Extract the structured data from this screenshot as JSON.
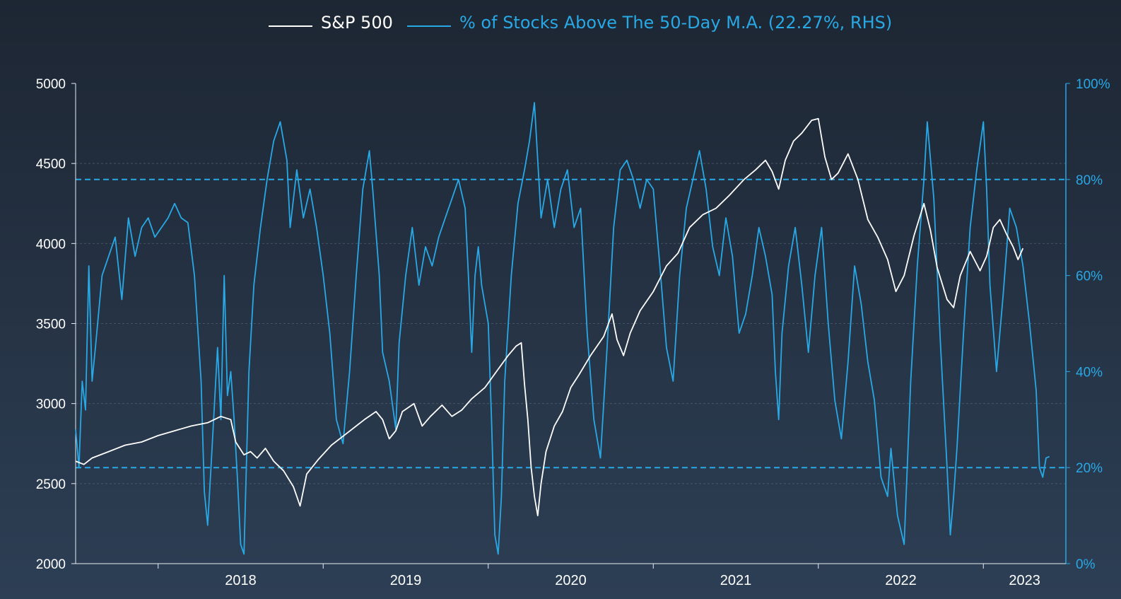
{
  "chart_data": {
    "type": "line",
    "legend_position": "top-center",
    "grid": true,
    "colors": {
      "sp500": "#ffffff",
      "pct": "#29a8e6",
      "axis": "#e8edf3",
      "grid": "#5d6b7c"
    },
    "series": [
      {
        "name": "S&P 500",
        "axis": "left",
        "points": [
          [
            2017.5,
            2640
          ],
          [
            2017.55,
            2620
          ],
          [
            2017.6,
            2660
          ],
          [
            2017.7,
            2700
          ],
          [
            2017.8,
            2740
          ],
          [
            2017.9,
            2760
          ],
          [
            2018.0,
            2800
          ],
          [
            2018.1,
            2830
          ],
          [
            2018.2,
            2860
          ],
          [
            2018.3,
            2880
          ],
          [
            2018.38,
            2920
          ],
          [
            2018.44,
            2900
          ],
          [
            2018.47,
            2760
          ],
          [
            2018.52,
            2680
          ],
          [
            2018.56,
            2700
          ],
          [
            2018.6,
            2660
          ],
          [
            2018.65,
            2720
          ],
          [
            2018.7,
            2640
          ],
          [
            2018.76,
            2580
          ],
          [
            2018.82,
            2480
          ],
          [
            2018.86,
            2360
          ],
          [
            2018.9,
            2560
          ],
          [
            2018.97,
            2650
          ],
          [
            2019.05,
            2740
          ],
          [
            2019.15,
            2820
          ],
          [
            2019.25,
            2900
          ],
          [
            2019.32,
            2950
          ],
          [
            2019.36,
            2900
          ],
          [
            2019.4,
            2780
          ],
          [
            2019.44,
            2830
          ],
          [
            2019.48,
            2950
          ],
          [
            2019.55,
            3000
          ],
          [
            2019.6,
            2860
          ],
          [
            2019.65,
            2920
          ],
          [
            2019.72,
            2990
          ],
          [
            2019.78,
            2920
          ],
          [
            2019.84,
            2960
          ],
          [
            2019.9,
            3030
          ],
          [
            2019.98,
            3100
          ],
          [
            2020.05,
            3200
          ],
          [
            2020.12,
            3300
          ],
          [
            2020.17,
            3360
          ],
          [
            2020.2,
            3380
          ],
          [
            2020.22,
            3120
          ],
          [
            2020.24,
            2900
          ],
          [
            2020.26,
            2600
          ],
          [
            2020.28,
            2420
          ],
          [
            2020.3,
            2300
          ],
          [
            2020.32,
            2500
          ],
          [
            2020.35,
            2700
          ],
          [
            2020.4,
            2860
          ],
          [
            2020.45,
            2950
          ],
          [
            2020.5,
            3100
          ],
          [
            2020.55,
            3180
          ],
          [
            2020.62,
            3300
          ],
          [
            2020.7,
            3420
          ],
          [
            2020.75,
            3560
          ],
          [
            2020.78,
            3400
          ],
          [
            2020.82,
            3300
          ],
          [
            2020.86,
            3440
          ],
          [
            2020.92,
            3580
          ],
          [
            2021.0,
            3700
          ],
          [
            2021.08,
            3860
          ],
          [
            2021.15,
            3940
          ],
          [
            2021.22,
            4100
          ],
          [
            2021.3,
            4180
          ],
          [
            2021.38,
            4220
          ],
          [
            2021.46,
            4300
          ],
          [
            2021.55,
            4400
          ],
          [
            2021.62,
            4460
          ],
          [
            2021.68,
            4520
          ],
          [
            2021.72,
            4450
          ],
          [
            2021.76,
            4340
          ],
          [
            2021.8,
            4520
          ],
          [
            2021.85,
            4640
          ],
          [
            2021.9,
            4690
          ],
          [
            2021.96,
            4770
          ],
          [
            2022.0,
            4780
          ],
          [
            2022.04,
            4540
          ],
          [
            2022.08,
            4400
          ],
          [
            2022.12,
            4440
          ],
          [
            2022.18,
            4560
          ],
          [
            2022.24,
            4400
          ],
          [
            2022.3,
            4150
          ],
          [
            2022.36,
            4040
          ],
          [
            2022.42,
            3900
          ],
          [
            2022.47,
            3700
          ],
          [
            2022.52,
            3800
          ],
          [
            2022.58,
            4050
          ],
          [
            2022.64,
            4250
          ],
          [
            2022.68,
            4080
          ],
          [
            2022.72,
            3850
          ],
          [
            2022.78,
            3650
          ],
          [
            2022.82,
            3600
          ],
          [
            2022.86,
            3800
          ],
          [
            2022.92,
            3950
          ],
          [
            2022.98,
            3830
          ],
          [
            2023.02,
            3920
          ],
          [
            2023.06,
            4100
          ],
          [
            2023.1,
            4150
          ],
          [
            2023.14,
            4060
          ],
          [
            2023.18,
            3980
          ],
          [
            2023.21,
            3900
          ],
          [
            2023.24,
            3970
          ]
        ]
      },
      {
        "name": "% of Stocks Above The 50-Day M.A. (22.27%, RHS)",
        "axis": "right",
        "points": [
          [
            2017.5,
            28
          ],
          [
            2017.52,
            20
          ],
          [
            2017.54,
            38
          ],
          [
            2017.56,
            32
          ],
          [
            2017.58,
            62
          ],
          [
            2017.6,
            38
          ],
          [
            2017.62,
            45
          ],
          [
            2017.66,
            60
          ],
          [
            2017.7,
            64
          ],
          [
            2017.74,
            68
          ],
          [
            2017.78,
            55
          ],
          [
            2017.82,
            72
          ],
          [
            2017.86,
            64
          ],
          [
            2017.9,
            70
          ],
          [
            2017.94,
            72
          ],
          [
            2017.98,
            68
          ],
          [
            2018.02,
            70
          ],
          [
            2018.06,
            72
          ],
          [
            2018.1,
            75
          ],
          [
            2018.14,
            72
          ],
          [
            2018.18,
            71
          ],
          [
            2018.22,
            60
          ],
          [
            2018.26,
            38
          ],
          [
            2018.28,
            15
          ],
          [
            2018.3,
            8
          ],
          [
            2018.32,
            20
          ],
          [
            2018.36,
            45
          ],
          [
            2018.38,
            30
          ],
          [
            2018.4,
            60
          ],
          [
            2018.42,
            35
          ],
          [
            2018.44,
            40
          ],
          [
            2018.46,
            30
          ],
          [
            2018.48,
            18
          ],
          [
            2018.5,
            4
          ],
          [
            2018.52,
            2
          ],
          [
            2018.55,
            40
          ],
          [
            2018.58,
            58
          ],
          [
            2018.62,
            70
          ],
          [
            2018.66,
            80
          ],
          [
            2018.7,
            88
          ],
          [
            2018.74,
            92
          ],
          [
            2018.78,
            84
          ],
          [
            2018.8,
            70
          ],
          [
            2018.84,
            82
          ],
          [
            2018.88,
            72
          ],
          [
            2018.92,
            78
          ],
          [
            2018.96,
            70
          ],
          [
            2019.0,
            60
          ],
          [
            2019.04,
            48
          ],
          [
            2019.08,
            30
          ],
          [
            2019.12,
            25
          ],
          [
            2019.16,
            40
          ],
          [
            2019.2,
            60
          ],
          [
            2019.24,
            78
          ],
          [
            2019.28,
            86
          ],
          [
            2019.3,
            78
          ],
          [
            2019.34,
            60
          ],
          [
            2019.36,
            44
          ],
          [
            2019.4,
            38
          ],
          [
            2019.44,
            28
          ],
          [
            2019.46,
            46
          ],
          [
            2019.5,
            60
          ],
          [
            2019.54,
            70
          ],
          [
            2019.58,
            58
          ],
          [
            2019.62,
            66
          ],
          [
            2019.66,
            62
          ],
          [
            2019.7,
            68
          ],
          [
            2019.74,
            72
          ],
          [
            2019.78,
            76
          ],
          [
            2019.82,
            80
          ],
          [
            2019.86,
            74
          ],
          [
            2019.88,
            60
          ],
          [
            2019.9,
            44
          ],
          [
            2019.92,
            60
          ],
          [
            2019.94,
            66
          ],
          [
            2019.96,
            58
          ],
          [
            2020.0,
            50
          ],
          [
            2020.02,
            30
          ],
          [
            2020.04,
            6
          ],
          [
            2020.06,
            2
          ],
          [
            2020.08,
            14
          ],
          [
            2020.1,
            38
          ],
          [
            2020.14,
            60
          ],
          [
            2020.18,
            75
          ],
          [
            2020.22,
            82
          ],
          [
            2020.25,
            88
          ],
          [
            2020.28,
            96
          ],
          [
            2020.32,
            72
          ],
          [
            2020.36,
            80
          ],
          [
            2020.4,
            70
          ],
          [
            2020.44,
            78
          ],
          [
            2020.48,
            82
          ],
          [
            2020.52,
            70
          ],
          [
            2020.56,
            74
          ],
          [
            2020.6,
            48
          ],
          [
            2020.64,
            30
          ],
          [
            2020.68,
            22
          ],
          [
            2020.72,
            45
          ],
          [
            2020.76,
            70
          ],
          [
            2020.8,
            82
          ],
          [
            2020.84,
            84
          ],
          [
            2020.88,
            80
          ],
          [
            2020.92,
            74
          ],
          [
            2020.96,
            80
          ],
          [
            2021.0,
            78
          ],
          [
            2021.04,
            62
          ],
          [
            2021.08,
            45
          ],
          [
            2021.12,
            38
          ],
          [
            2021.16,
            60
          ],
          [
            2021.2,
            74
          ],
          [
            2021.24,
            80
          ],
          [
            2021.28,
            86
          ],
          [
            2021.32,
            78
          ],
          [
            2021.36,
            66
          ],
          [
            2021.4,
            60
          ],
          [
            2021.44,
            72
          ],
          [
            2021.48,
            64
          ],
          [
            2021.52,
            48
          ],
          [
            2021.56,
            52
          ],
          [
            2021.6,
            60
          ],
          [
            2021.64,
            70
          ],
          [
            2021.68,
            64
          ],
          [
            2021.72,
            56
          ],
          [
            2021.74,
            40
          ],
          [
            2021.76,
            30
          ],
          [
            2021.78,
            48
          ],
          [
            2021.82,
            62
          ],
          [
            2021.86,
            70
          ],
          [
            2021.9,
            58
          ],
          [
            2021.94,
            44
          ],
          [
            2021.98,
            60
          ],
          [
            2022.02,
            70
          ],
          [
            2022.06,
            50
          ],
          [
            2022.1,
            34
          ],
          [
            2022.14,
            26
          ],
          [
            2022.18,
            42
          ],
          [
            2022.22,
            62
          ],
          [
            2022.26,
            54
          ],
          [
            2022.3,
            42
          ],
          [
            2022.34,
            34
          ],
          [
            2022.38,
            18
          ],
          [
            2022.42,
            14
          ],
          [
            2022.44,
            24
          ],
          [
            2022.48,
            10
          ],
          [
            2022.52,
            4
          ],
          [
            2022.56,
            38
          ],
          [
            2022.6,
            62
          ],
          [
            2022.64,
            80
          ],
          [
            2022.66,
            92
          ],
          [
            2022.7,
            76
          ],
          [
            2022.74,
            46
          ],
          [
            2022.78,
            20
          ],
          [
            2022.8,
            6
          ],
          [
            2022.82,
            14
          ],
          [
            2022.84,
            24
          ],
          [
            2022.88,
            48
          ],
          [
            2022.92,
            70
          ],
          [
            2022.96,
            82
          ],
          [
            2023.0,
            92
          ],
          [
            2023.02,
            78
          ],
          [
            2023.04,
            58
          ],
          [
            2023.08,
            40
          ],
          [
            2023.12,
            56
          ],
          [
            2023.16,
            74
          ],
          [
            2023.2,
            70
          ],
          [
            2023.24,
            62
          ],
          [
            2023.28,
            50
          ],
          [
            2023.32,
            36
          ],
          [
            2023.34,
            20
          ],
          [
            2023.36,
            18
          ],
          [
            2023.38,
            22
          ],
          [
            2023.4,
            22.3
          ]
        ]
      }
    ],
    "left_axis": {
      "ylim": [
        2000,
        5000
      ],
      "ticks": [
        "5000",
        "4500",
        "4000",
        "3500",
        "3000",
        "2500",
        "2000"
      ]
    },
    "right_axis": {
      "ylim": [
        0,
        100
      ],
      "ticks": [
        "100%",
        "80%",
        "60%",
        "40%",
        "20%",
        "0%"
      ]
    },
    "x_axis": {
      "xlim": [
        2017.5,
        2023.5
      ],
      "ticks": [
        "2018",
        "2019",
        "2020",
        "2021",
        "2022",
        "2023"
      ]
    },
    "reference_lines_right": [
      80,
      20
    ]
  }
}
